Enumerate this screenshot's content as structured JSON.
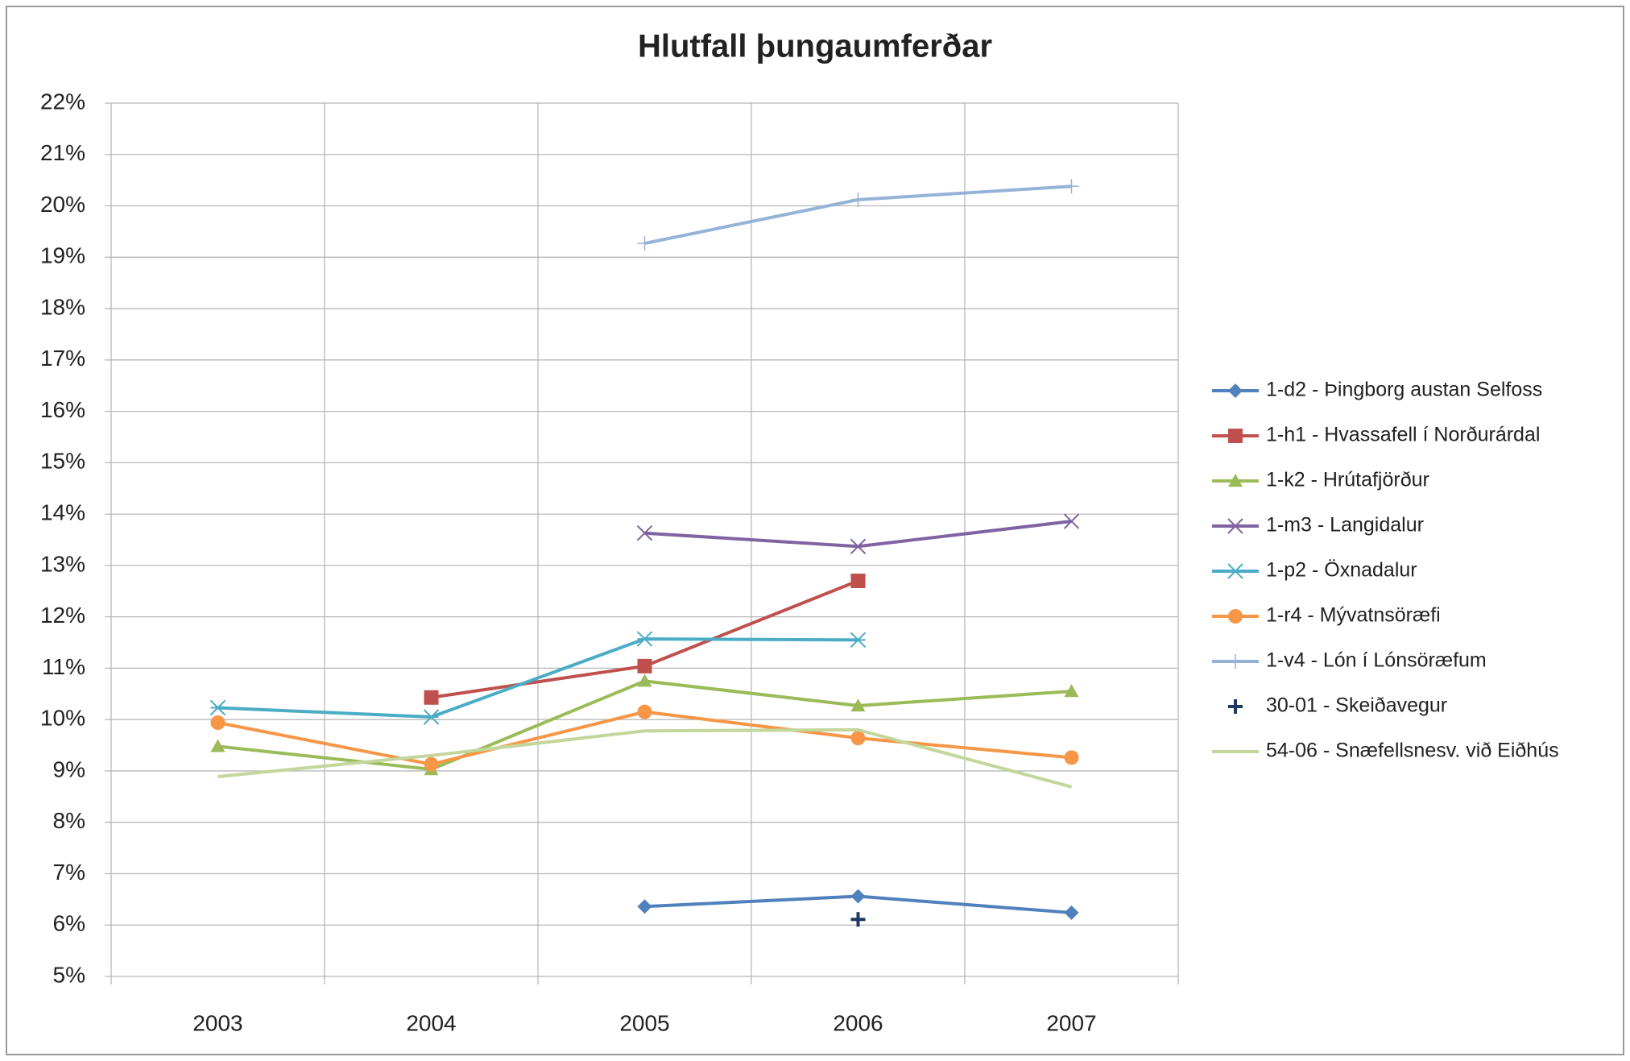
{
  "chart_data": {
    "type": "line",
    "title": "Hlutfall þungaumferðar",
    "categories": [
      "2003",
      "2004",
      "2005",
      "2006",
      "2007"
    ],
    "ylim": [
      5,
      22
    ],
    "yticks": [
      {
        "value": 5,
        "label": "5%"
      },
      {
        "value": 6,
        "label": "6%"
      },
      {
        "value": 7,
        "label": "7%"
      },
      {
        "value": 8,
        "label": "8%"
      },
      {
        "value": 9,
        "label": "9%"
      },
      {
        "value": 10,
        "label": "10%"
      },
      {
        "value": 11,
        "label": "11%"
      },
      {
        "value": 12,
        "label": "12%"
      },
      {
        "value": 13,
        "label": "13%"
      },
      {
        "value": 14,
        "label": "14%"
      },
      {
        "value": 15,
        "label": "15%"
      },
      {
        "value": 16,
        "label": "16%"
      },
      {
        "value": 17,
        "label": "17%"
      },
      {
        "value": 18,
        "label": "18%"
      },
      {
        "value": 19,
        "label": "19%"
      },
      {
        "value": 20,
        "label": "20%"
      },
      {
        "value": 21,
        "label": "21%"
      },
      {
        "value": 22,
        "label": "22%"
      }
    ],
    "grid": true,
    "legend": "right",
    "series": [
      {
        "name": "1-d2 - Þingborg austan Selfoss",
        "color": "#4f81bd",
        "marker": "diamond",
        "values": [
          null,
          null,
          6.36,
          6.56,
          6.24
        ]
      },
      {
        "name": "1-h1 - Hvassafell í Norðurárdal",
        "color": "#c0504d",
        "marker": "square",
        "values": [
          null,
          10.43,
          11.04,
          12.7,
          null
        ]
      },
      {
        "name": "1-k2 - Hrútafjörður",
        "color": "#9bbb59",
        "marker": "triangle",
        "values": [
          9.48,
          9.03,
          10.75,
          10.27,
          10.55
        ]
      },
      {
        "name": "1-m3 - Langidalur",
        "color": "#8064a2",
        "marker": "x",
        "values": [
          null,
          null,
          13.63,
          13.37,
          13.86
        ]
      },
      {
        "name": "1-p2 - Öxnadalur",
        "color": "#4bacc6",
        "marker": "star",
        "values": [
          10.23,
          10.05,
          11.57,
          11.55,
          null
        ]
      },
      {
        "name": "1-r4 - Mývatnsöræfi",
        "color": "#f79646",
        "marker": "circle",
        "values": [
          9.94,
          9.13,
          10.15,
          9.64,
          9.26
        ]
      },
      {
        "name": "1-v4 - Lón í Lónsöræfum",
        "color": "#95b3d7",
        "marker": "plus",
        "values": [
          null,
          null,
          19.27,
          20.12,
          20.38
        ]
      },
      {
        "name": "30-01 - Skeiðavegur",
        "color": "#1f3864",
        "marker": "boldplus",
        "line": false,
        "values": [
          null,
          null,
          null,
          6.11,
          null
        ]
      },
      {
        "name": "54-06 - Snæfellsnesv. við Eiðhús",
        "color": "#c3d69b",
        "marker": "none",
        "values": [
          8.89,
          9.3,
          9.78,
          9.8,
          8.69
        ]
      }
    ]
  }
}
